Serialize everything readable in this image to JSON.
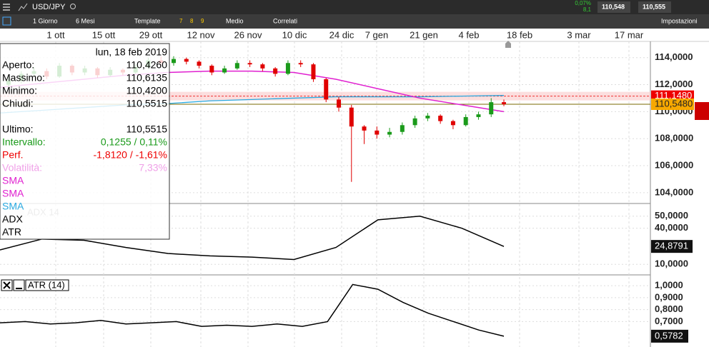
{
  "toolbar": {
    "symbol": "USD/JPY",
    "change": "0,07%",
    "change_sub": "8,1",
    "bid": "110,548",
    "ask": "110,555",
    "interval": "1 Giorno",
    "range": "6 Mesi",
    "template": "Template",
    "presets": [
      "7",
      "8",
      "9"
    ],
    "style": "Medio",
    "related": "Correlati",
    "settings": "Impostazioni"
  },
  "date_axis": [
    "1 ott",
    "15 ott",
    "29 ott",
    "12 nov",
    "26 nov",
    "10 dic",
    "24 dic",
    "7 gen",
    "21 gen",
    "4 feb",
    "18 feb",
    "3 mar",
    "17 mar"
  ],
  "price_chart": {
    "ylim": [
      103.2,
      115.2
    ],
    "yticks": [
      {
        "value": 114,
        "label": "114,0000"
      },
      {
        "value": 112,
        "label": "112,0000"
      },
      {
        "value": 110,
        "label": "110,0000"
      },
      {
        "value": 108,
        "label": "108,0000"
      },
      {
        "value": 106,
        "label": "106,0000"
      },
      {
        "value": 104,
        "label": "104,0000"
      }
    ],
    "candles": [
      [
        112.0,
        112.6,
        111.8,
        112.3
      ],
      [
        112.3,
        113.0,
        112.1,
        112.8
      ],
      [
        112.8,
        113.3,
        112.6,
        113.0
      ],
      [
        113.0,
        113.2,
        112.4,
        112.6
      ],
      [
        112.6,
        113.6,
        112.5,
        113.4
      ],
      [
        113.4,
        113.5,
        112.7,
        112.9
      ],
      [
        112.9,
        113.4,
        112.7,
        113.2
      ],
      [
        113.2,
        113.3,
        112.5,
        112.7
      ],
      [
        112.7,
        113.3,
        112.6,
        113.1
      ],
      [
        113.1,
        113.2,
        112.7,
        112.9
      ],
      [
        112.9,
        113.5,
        112.8,
        113.3
      ],
      [
        113.3,
        114.0,
        113.2,
        113.8
      ],
      [
        113.8,
        114.1,
        113.4,
        113.6
      ],
      [
        113.6,
        114.1,
        113.4,
        113.9
      ],
      [
        113.9,
        114.0,
        113.5,
        113.7
      ],
      [
        113.7,
        113.8,
        113.2,
        113.4
      ],
      [
        113.4,
        113.5,
        112.7,
        112.9
      ],
      [
        112.9,
        113.4,
        112.8,
        113.2
      ],
      [
        113.2,
        113.8,
        113.1,
        113.6
      ],
      [
        113.6,
        113.8,
        113.3,
        113.5
      ],
      [
        113.5,
        113.6,
        113.0,
        113.2
      ],
      [
        113.2,
        113.3,
        112.6,
        112.8
      ],
      [
        112.8,
        113.8,
        112.7,
        113.6
      ],
      [
        113.6,
        113.8,
        113.3,
        113.5
      ],
      [
        113.5,
        113.6,
        112.2,
        112.4
      ],
      [
        112.4,
        112.5,
        110.7,
        110.9
      ],
      [
        110.9,
        111.1,
        110.0,
        110.3
      ],
      [
        110.3,
        110.5,
        104.8,
        108.9
      ],
      [
        108.9,
        109.0,
        107.6,
        108.6
      ],
      [
        108.6,
        108.9,
        108.0,
        108.3
      ],
      [
        108.3,
        108.8,
        108.1,
        108.5
      ],
      [
        108.5,
        109.2,
        108.3,
        109.0
      ],
      [
        109.0,
        109.7,
        108.8,
        109.5
      ],
      [
        109.5,
        109.9,
        109.3,
        109.7
      ],
      [
        109.7,
        109.8,
        109.1,
        109.3
      ],
      [
        109.3,
        109.4,
        108.7,
        109.0
      ],
      [
        109.0,
        109.8,
        108.9,
        109.6
      ],
      [
        109.6,
        110.0,
        109.4,
        109.8
      ],
      [
        109.8,
        111.0,
        109.6,
        110.7
      ],
      [
        110.7,
        110.9,
        110.4,
        110.55
      ]
    ],
    "sma50": [
      111.8,
      112.1,
      112.4,
      112.7,
      112.9,
      113.0,
      113.0,
      112.9,
      112.4,
      111.7,
      111.0,
      110.5,
      110.0
    ],
    "sma200": [
      109.9,
      110.1,
      110.3,
      110.5,
      110.6,
      110.8,
      110.9,
      111.0,
      111.1,
      111.1,
      111.1,
      111.15,
      111.2
    ],
    "tags": [
      {
        "value": 111.148,
        "label": "111,1480"
      },
      {
        "value": 110.548,
        "label": "110,5480"
      }
    ]
  },
  "info_panel": {
    "date": "lun, 18 feb 2019",
    "rows": [
      [
        "Aperto:",
        "110,4260"
      ],
      [
        "Massimo:",
        "110,6135"
      ],
      [
        "Minimo:",
        "110,4200"
      ],
      [
        "Chiudi:",
        "110,5515"
      ]
    ],
    "rows2": [
      [
        "Ultimo:",
        "110,5515"
      ],
      [
        "Intervallo:",
        "0,1255 / 0,11%"
      ],
      [
        "Perf.",
        "-1,8120 / -1,61%"
      ],
      [
        "Volatilità:",
        "7,33%"
      ]
    ],
    "indicators": [
      "SMA",
      "SMA",
      "SMA",
      "ADX",
      "ATR"
    ]
  },
  "adx": {
    "title": "ADX 14",
    "ylim": [
      3.6,
      57.6
    ],
    "yticks": [
      {
        "value": 50,
        "label": "50,0000"
      },
      {
        "value": 40,
        "label": "40,0000"
      },
      {
        "value": 10,
        "label": "10,0000"
      }
    ],
    "values": [
      22,
      31,
      30,
      24,
      19,
      17,
      16,
      14,
      24,
      47,
      50,
      40,
      24.8791
    ],
    "last_label": "24,8791"
  },
  "atr": {
    "title": "ATR (14)",
    "ylim": [
      0.5,
      1.06
    ],
    "yticks": [
      {
        "value": 1,
        "label": "1,0000"
      },
      {
        "value": 0.9,
        "label": "0,9000"
      },
      {
        "value": 0.8,
        "label": "0,8000"
      },
      {
        "value": 0.7,
        "label": "0,7000"
      }
    ],
    "values": [
      0.69,
      0.7,
      0.68,
      0.69,
      0.71,
      0.68,
      0.69,
      0.7,
      0.66,
      0.67,
      0.66,
      0.68,
      0.66,
      0.7,
      1.01,
      0.97,
      0.86,
      0.77,
      0.7,
      0.63,
      0.5782
    ],
    "last_label": "0,5782"
  }
}
